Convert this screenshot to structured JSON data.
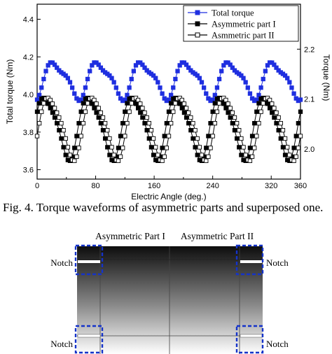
{
  "chart_data": {
    "type": "line",
    "xlabel": "Electric Angle (deg.)",
    "ylabel_left": "Total torque (Nm)",
    "ylabel_right": "Torque (Nm)",
    "xlim": [
      0,
      360
    ],
    "ylim_left": [
      3.55,
      4.48
    ],
    "ylim_right": [
      1.94,
      2.29
    ],
    "x_ticks": [
      "0",
      "80",
      "160",
      "240",
      "320",
      "360"
    ],
    "x_tick_values": [
      0,
      80,
      160,
      240,
      320,
      360
    ],
    "y_ticks_left": [
      "3.6",
      "3.8",
      "4.0",
      "4.2",
      "4.4"
    ],
    "y_tick_values_left": [
      3.6,
      3.8,
      4.0,
      4.2,
      4.4
    ],
    "y_ticks_right": [
      "2.0",
      "2.1",
      "2.2"
    ],
    "y_tick_values_right": [
      2.0,
      2.1,
      2.2
    ],
    "legend_position": "top-right",
    "grid": false,
    "series": [
      {
        "name": "Total torque",
        "axis": "left",
        "color": "#1f2fe0",
        "marker": "square-filled",
        "model": {
          "mean": 4.08,
          "amp1": 0.09,
          "amp2": 0.03,
          "period_deg": 60,
          "phase_deg": 10
        }
      },
      {
        "name": "Asymmetric part I",
        "axis": "right",
        "color": "#000000",
        "marker": "square-filled",
        "model": {
          "mean": 2.045,
          "amp1": 0.06,
          "amp2": 0.012,
          "period_deg": 60,
          "phase_deg": -3
        }
      },
      {
        "name": "Asmmetric part II",
        "axis": "right",
        "color": "#000000",
        "marker": "square-open",
        "model": {
          "mean": 2.045,
          "amp1": 0.06,
          "amp2": 0.012,
          "period_deg": 60,
          "phase_deg": 3
        }
      }
    ],
    "sample_step_deg": 3
  },
  "caption": "Fig. 4. Torque waveforms of asymmetric parts and superposed one.",
  "diagram": {
    "label_part1": "Asymmetric Part I",
    "label_part2": "Asymmetric Part II",
    "notch_label": "Notch",
    "notch_box_color": "#1533c9"
  }
}
